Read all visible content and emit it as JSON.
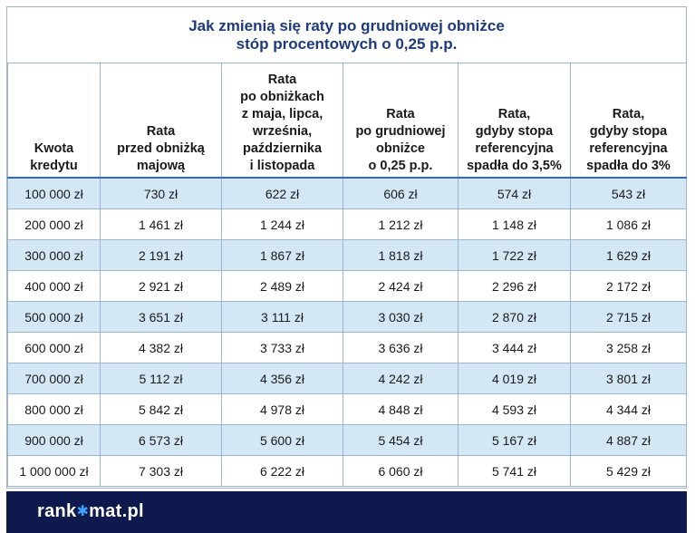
{
  "title": {
    "line1": "Jak zmienią się raty po grudniowej obniżce",
    "line2": "stóp procentowych o 0,25 p.p."
  },
  "headers": [
    [
      "Kwota",
      "kredytu"
    ],
    [
      "Rata",
      "przed obniżką",
      "majową"
    ],
    [
      "Rata",
      "po obniżkach",
      "z maja, lipca,",
      "września,",
      "października",
      "i listopada"
    ],
    [
      "Rata",
      "po grudniowej",
      "obniżce",
      "o 0,25 p.p."
    ],
    [
      "Rata,",
      "gdyby stopa",
      "referencyjna",
      "spadła do 3,5%"
    ],
    [
      "Rata,",
      "gdyby stopa",
      "referencyjna",
      "spadła do 3%"
    ]
  ],
  "rows": [
    [
      "100 000 zł",
      "730 zł",
      "622 zł",
      "606 zł",
      "574 zł",
      "543 zł"
    ],
    [
      "200 000 zł",
      "1 461 zł",
      "1 244 zł",
      "1 212 zł",
      "1 148 zł",
      "1 086 zł"
    ],
    [
      "300 000 zł",
      "2 191 zł",
      "1 867 zł",
      "1 818 zł",
      "1 722 zł",
      "1 629 zł"
    ],
    [
      "400 000 zł",
      "2 921 zł",
      "2 489 zł",
      "2 424 zł",
      "2 296 zł",
      "2 172 zł"
    ],
    [
      "500 000 zł",
      "3 651 zł",
      "3 111 zł",
      "3 030 zł",
      "2 870 zł",
      "2 715 zł"
    ],
    [
      "600 000 zł",
      "4 382 zł",
      "3 733 zł",
      "3 636 zł",
      "3 444 zł",
      "3 258 zł"
    ],
    [
      "700 000 zł",
      "5 112 zł",
      "4 356 zł",
      "4 242 zł",
      "4 019 zł",
      "3 801 zł"
    ],
    [
      "800 000 zł",
      "5 842 zł",
      "4 978 zł",
      "4 848 zł",
      "4 593 zł",
      "4 344 zł"
    ],
    [
      "900 000 zł",
      "6 573 zł",
      "5 600 zł",
      "5 454 zł",
      "5 167 zł",
      "4 887 zł"
    ],
    [
      "1 000 000 zł",
      "7 303 zł",
      "6 222 zł",
      "6 060 zł",
      "5 741 zł",
      "5 429 zł"
    ]
  ],
  "footer": {
    "logo_before": "rank",
    "logo_star": "✱",
    "logo_after": "mat.pl"
  },
  "colors": {
    "title": "#1c3a7d",
    "row_alt": "#d4e7f5",
    "footer_bg": "#0e1a4e",
    "header_rule": "#2c6bd4"
  }
}
